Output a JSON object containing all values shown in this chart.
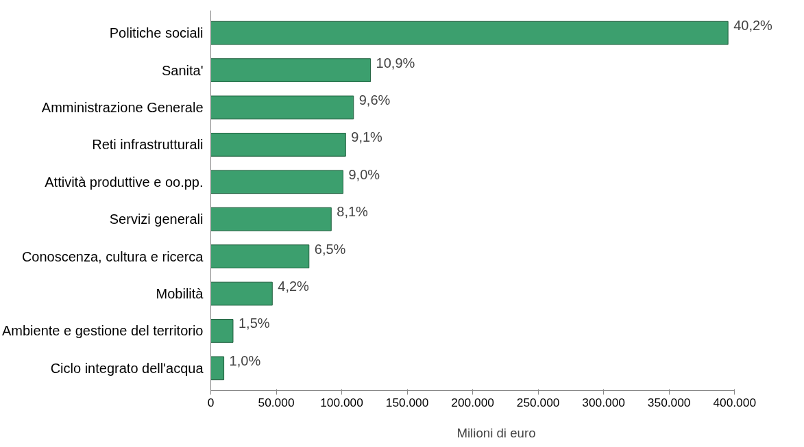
{
  "chart_data": {
    "type": "bar",
    "orientation": "horizontal",
    "xlabel": "Milioni di euro",
    "categories": [
      "Politiche sociali",
      "Sanita'",
      "Amministrazione Generale",
      "Reti infrastrutturali",
      "Attività produttive e oo.pp.",
      "Servizi generali",
      "Conoscenza, cultura e ricerca",
      "Mobilità",
      "Ambiente e gestione del territorio",
      "Ciclo integrato dell'acqua"
    ],
    "values": [
      395000,
      122000,
      109000,
      103000,
      101000,
      92000,
      75000,
      47000,
      17000,
      10000
    ],
    "annotations": [
      {
        "text": "40,2%",
        "x": 395000,
        "y": "Politiche sociali"
      },
      {
        "text": "10,9%",
        "x": 122000,
        "y": "Sanita'"
      },
      {
        "text": "9,6%",
        "x": 109000,
        "y": "Amministrazione Generale"
      },
      {
        "text": "9,1%",
        "x": 103000,
        "y": "Reti infrastrutturali"
      },
      {
        "text": "9,0%",
        "x": 101000,
        "y": "Attività produttive e oo.pp."
      },
      {
        "text": "8,1%",
        "x": 92000,
        "y": "Servizi generali"
      },
      {
        "text": "6,5%",
        "x": 75000,
        "y": "Conoscenza, cultura e ricerca"
      },
      {
        "text": "4,2%",
        "x": 47000,
        "y": "Mobilità"
      },
      {
        "text": "1,5%",
        "x": 17000,
        "y": "Ambiente e gestione del territorio"
      },
      {
        "text": "1,0%",
        "x": 10000,
        "y": "Ciclo integrato dell'acqua"
      }
    ],
    "color": "#3c9f6e",
    "xlim": [
      0,
      400000
    ],
    "xticks": [
      {
        "value": 0,
        "label": "0"
      },
      {
        "value": 50000,
        "label": "50.000"
      },
      {
        "value": 100000,
        "label": "100.000"
      },
      {
        "value": 150000,
        "label": "150.000"
      },
      {
        "value": 200000,
        "label": "200.000"
      },
      {
        "value": 250000,
        "label": "250.000"
      },
      {
        "value": 300000,
        "label": "300.000"
      },
      {
        "value": 350000,
        "label": "350.000"
      },
      {
        "value": 400000,
        "label": "400.000"
      }
    ],
    "grid": false
  }
}
